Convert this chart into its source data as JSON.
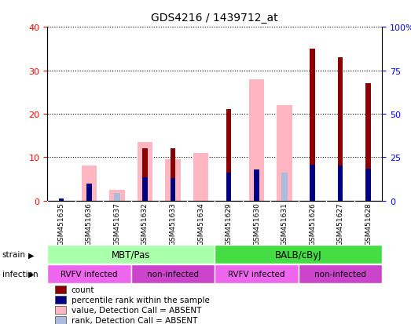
{
  "title": "GDS4216 / 1439712_at",
  "samples": [
    "GSM451635",
    "GSM451636",
    "GSM451637",
    "GSM451632",
    "GSM451633",
    "GSM451634",
    "GSM451629",
    "GSM451630",
    "GSM451631",
    "GSM451626",
    "GSM451627",
    "GSM451628"
  ],
  "count": [
    0,
    0,
    0,
    12,
    12,
    0,
    21,
    0,
    0,
    35,
    33,
    27
  ],
  "percentile_rank": [
    1,
    10,
    0,
    13.5,
    13,
    0,
    16,
    18,
    0,
    20.5,
    20,
    18.5
  ],
  "value_absent": [
    0,
    8,
    2.5,
    13.5,
    9.5,
    11,
    0,
    28,
    22,
    0,
    0,
    0
  ],
  "rank_absent": [
    0,
    0,
    4.5,
    0,
    0,
    0,
    0,
    0,
    16,
    0,
    0,
    0
  ],
  "strain_groups": [
    {
      "label": "MBT/Pas",
      "start": 0,
      "end": 6,
      "color": "#aaffaa"
    },
    {
      "label": "BALB/cByJ",
      "start": 6,
      "end": 12,
      "color": "#44dd44"
    }
  ],
  "infection_groups": [
    {
      "label": "RVFV infected",
      "start": 0,
      "end": 3,
      "color": "#ee66ee"
    },
    {
      "label": "non-infected",
      "start": 3,
      "end": 6,
      "color": "#cc44cc"
    },
    {
      "label": "RVFV infected",
      "start": 6,
      "end": 9,
      "color": "#ee66ee"
    },
    {
      "label": "non-infected",
      "start": 9,
      "end": 12,
      "color": "#cc44cc"
    }
  ],
  "ylim_left": [
    0,
    40
  ],
  "ylim_right": [
    0,
    100
  ],
  "yticks_left": [
    0,
    10,
    20,
    30,
    40
  ],
  "yticks_right": [
    0,
    25,
    50,
    75,
    100
  ],
  "bar_color_count": "#8B0000",
  "bar_color_percentile": "#000080",
  "bar_color_value_absent": "#FFB6C1",
  "bar_color_rank_absent": "#aabbdd",
  "legend_items": [
    {
      "label": "count",
      "color": "#8B0000"
    },
    {
      "label": "percentile rank within the sample",
      "color": "#000080"
    },
    {
      "label": "value, Detection Call = ABSENT",
      "color": "#FFB6C1"
    },
    {
      "label": "rank, Detection Call = ABSENT",
      "color": "#aabbdd"
    }
  ]
}
